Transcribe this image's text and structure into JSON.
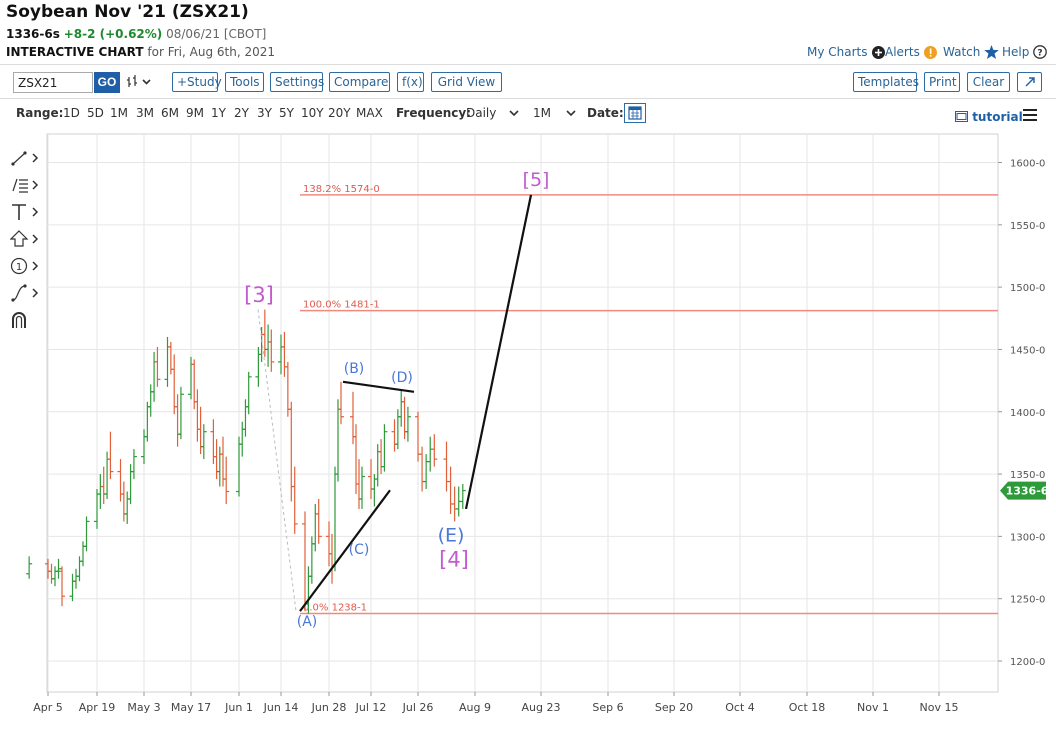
{
  "header": {
    "title": "Soybean Nov '21 (ZSX21)",
    "last": "1336-6s",
    "change": "+8-2 (+0.62%)",
    "date_exchange": "08/06/21 [CBOT]",
    "chart_label": "INTERACTIVE CHART",
    "chart_for": "for Fri, Aug 6th, 2021"
  },
  "top_links": {
    "my_charts": "My Charts",
    "alerts": "Alerts",
    "watch": "Watch",
    "help": "Help"
  },
  "toolbar": {
    "symbol": "ZSX21",
    "go": "GO",
    "study": "+Study",
    "tools": "Tools",
    "settings": "Settings",
    "compare": "Compare",
    "fx": "f(x)",
    "grid_view": "Grid View",
    "templates": "Templates",
    "print": "Print",
    "clear": "Clear"
  },
  "range_bar": {
    "range_label": "Range:",
    "ranges": [
      "1D",
      "5D",
      "1M",
      "3M",
      "6M",
      "9M",
      "1Y",
      "2Y",
      "3Y",
      "5Y",
      "10Y",
      "20Y",
      "MAX"
    ],
    "frequency_label": "Frequency:",
    "frequency": "Daily",
    "period": "1M",
    "date_label": "Date:",
    "tutorial": "tutorial"
  },
  "drawing_tools": [
    "line-tool-icon",
    "fibonacci-tool-icon",
    "text-tool-icon",
    "arrow-tool-icon",
    "elliott-count-tool-icon",
    "curve-tool-icon",
    "magnet-icon"
  ],
  "chart_data": {
    "type": "ohlc",
    "instrument": "Soybean Nov '21 (ZSX21)",
    "frequency": "Daily",
    "ylim": [
      1175,
      1625
    ],
    "y_ticks": [
      "1600-0",
      "1550-0",
      "1500-0",
      "1450-0",
      "1400-0",
      "1350-0",
      "1300-0",
      "1250-0",
      "1200-0"
    ],
    "y_tick_values": [
      1600,
      1550,
      1500,
      1450,
      1400,
      1350,
      1300,
      1250,
      1200
    ],
    "x_ticks": [
      "Apr 5",
      "Apr 19",
      "May 3",
      "May 17",
      "Jun 1",
      "Jun 14",
      "Jun 28",
      "Jul 12",
      "Jul 26",
      "Aug 9",
      "Aug 23",
      "Sep 6",
      "Sep 20",
      "Oct 4",
      "Oct 18",
      "Nov 1",
      "Nov 15"
    ],
    "last_price_label": "1336-6",
    "last_price": 1336.75,
    "colors": {
      "up": "#2e9a3a",
      "down": "#e0603a",
      "fib": "#f08a80",
      "wave": "#4a78d8",
      "major_wave": "#c35bd0",
      "last_tag": "#2e9a3a",
      "grid": "#e6e6e6"
    },
    "fib_levels": [
      {
        "label": "138.2% 1574-0",
        "value": 1574
      },
      {
        "label": "100.0% 1481-1",
        "value": 1481.125
      },
      {
        "label": "0.0% 1238-1",
        "value": 1238.125
      }
    ],
    "wave_labels_minor": [
      "(A)",
      "(B)",
      "(C)",
      "(D)",
      "(E)"
    ],
    "wave_labels_major": [
      "[3]",
      "[4]",
      "[5]"
    ],
    "ohlc": [
      {
        "d": "Apr 1",
        "o": 1270,
        "h": 1284,
        "l": 1266,
        "c": 1278
      },
      {
        "d": "Apr 5",
        "o": 1278,
        "h": 1282,
        "l": 1266,
        "c": 1272
      },
      {
        "d": "Apr 6",
        "o": 1272,
        "h": 1278,
        "l": 1262,
        "c": 1266
      },
      {
        "d": "Apr 7",
        "o": 1266,
        "h": 1276,
        "l": 1260,
        "c": 1272
      },
      {
        "d": "Apr 8",
        "o": 1272,
        "h": 1282,
        "l": 1266,
        "c": 1274
      },
      {
        "d": "Apr 9",
        "o": 1272,
        "h": 1276,
        "l": 1244,
        "c": 1252
      },
      {
        "d": "Apr 12",
        "o": 1252,
        "h": 1270,
        "l": 1248,
        "c": 1264
      },
      {
        "d": "Apr 13",
        "o": 1264,
        "h": 1274,
        "l": 1258,
        "c": 1268
      },
      {
        "d": "Apr 14",
        "o": 1268,
        "h": 1284,
        "l": 1264,
        "c": 1280
      },
      {
        "d": "Apr 15",
        "o": 1280,
        "h": 1296,
        "l": 1276,
        "c": 1292
      },
      {
        "d": "Apr 16",
        "o": 1292,
        "h": 1316,
        "l": 1288,
        "c": 1312
      },
      {
        "d": "Apr 19",
        "o": 1312,
        "h": 1338,
        "l": 1306,
        "c": 1334
      },
      {
        "d": "Apr 20",
        "o": 1334,
        "h": 1350,
        "l": 1322,
        "c": 1340
      },
      {
        "d": "Apr 21",
        "o": 1340,
        "h": 1356,
        "l": 1326,
        "c": 1334
      },
      {
        "d": "Apr 22",
        "o": 1334,
        "h": 1368,
        "l": 1330,
        "c": 1362
      },
      {
        "d": "Apr 23",
        "o": 1362,
        "h": 1384,
        "l": 1346,
        "c": 1352
      },
      {
        "d": "Apr 26",
        "o": 1352,
        "h": 1362,
        "l": 1328,
        "c": 1334
      },
      {
        "d": "Apr 27",
        "o": 1334,
        "h": 1344,
        "l": 1312,
        "c": 1318
      },
      {
        "d": "Apr 28",
        "o": 1318,
        "h": 1336,
        "l": 1310,
        "c": 1330
      },
      {
        "d": "Apr 29",
        "o": 1330,
        "h": 1358,
        "l": 1326,
        "c": 1352
      },
      {
        "d": "Apr 30",
        "o": 1352,
        "h": 1370,
        "l": 1346,
        "c": 1364
      },
      {
        "d": "May 3",
        "o": 1364,
        "h": 1386,
        "l": 1358,
        "c": 1380
      },
      {
        "d": "May 4",
        "o": 1380,
        "h": 1408,
        "l": 1376,
        "c": 1404
      },
      {
        "d": "May 5",
        "o": 1404,
        "h": 1422,
        "l": 1396,
        "c": 1416
      },
      {
        "d": "May 6",
        "o": 1416,
        "h": 1448,
        "l": 1408,
        "c": 1440
      },
      {
        "d": "May 7",
        "o": 1440,
        "h": 1452,
        "l": 1420,
        "c": 1426
      },
      {
        "d": "May 10",
        "o": 1426,
        "h": 1460,
        "l": 1420,
        "c": 1452
      },
      {
        "d": "May 11",
        "o": 1452,
        "h": 1456,
        "l": 1430,
        "c": 1434
      },
      {
        "d": "May 12",
        "o": 1434,
        "h": 1446,
        "l": 1398,
        "c": 1404
      },
      {
        "d": "May 13",
        "o": 1404,
        "h": 1414,
        "l": 1372,
        "c": 1382
      },
      {
        "d": "May 14",
        "o": 1382,
        "h": 1420,
        "l": 1378,
        "c": 1414
      },
      {
        "d": "May 17",
        "o": 1414,
        "h": 1444,
        "l": 1410,
        "c": 1438
      },
      {
        "d": "May 18",
        "o": 1438,
        "h": 1442,
        "l": 1402,
        "c": 1408
      },
      {
        "d": "May 19",
        "o": 1408,
        "h": 1418,
        "l": 1376,
        "c": 1386
      },
      {
        "d": "May 20",
        "o": 1386,
        "h": 1404,
        "l": 1366,
        "c": 1372
      },
      {
        "d": "May 21",
        "o": 1372,
        "h": 1390,
        "l": 1362,
        "c": 1384
      },
      {
        "d": "May 24",
        "o": 1384,
        "h": 1394,
        "l": 1358,
        "c": 1364
      },
      {
        "d": "May 25",
        "o": 1364,
        "h": 1378,
        "l": 1346,
        "c": 1352
      },
      {
        "d": "May 26",
        "o": 1352,
        "h": 1372,
        "l": 1340,
        "c": 1366
      },
      {
        "d": "May 27",
        "o": 1366,
        "h": 1380,
        "l": 1340,
        "c": 1346
      },
      {
        "d": "May 28",
        "o": 1346,
        "h": 1364,
        "l": 1326,
        "c": 1336
      },
      {
        "d": "Jun 1",
        "o": 1336,
        "h": 1380,
        "l": 1332,
        "c": 1374
      },
      {
        "d": "Jun 2",
        "o": 1374,
        "h": 1392,
        "l": 1364,
        "c": 1386
      },
      {
        "d": "Jun 3",
        "o": 1386,
        "h": 1410,
        "l": 1380,
        "c": 1404
      },
      {
        "d": "Jun 4",
        "o": 1404,
        "h": 1432,
        "l": 1398,
        "c": 1428
      },
      {
        "d": "Jun 7",
        "o": 1428,
        "h": 1452,
        "l": 1420,
        "c": 1446
      },
      {
        "d": "Jun 8",
        "o": 1446,
        "h": 1468,
        "l": 1440,
        "c": 1462
      },
      {
        "d": "Jun 9",
        "o": 1462,
        "h": 1482,
        "l": 1444,
        "c": 1450
      },
      {
        "d": "Jun 10",
        "o": 1450,
        "h": 1470,
        "l": 1436,
        "c": 1456
      },
      {
        "d": "Jun 11",
        "o": 1456,
        "h": 1466,
        "l": 1432,
        "c": 1440
      },
      {
        "d": "Jun 14",
        "o": 1440,
        "h": 1462,
        "l": 1430,
        "c": 1452
      },
      {
        "d": "Jun 15",
        "o": 1452,
        "h": 1464,
        "l": 1428,
        "c": 1436
      },
      {
        "d": "Jun 16",
        "o": 1436,
        "h": 1440,
        "l": 1396,
        "c": 1402
      },
      {
        "d": "Jun 17",
        "o": 1402,
        "h": 1408,
        "l": 1328,
        "c": 1340
      },
      {
        "d": "Jun 18",
        "o": 1340,
        "h": 1356,
        "l": 1302,
        "c": 1310
      },
      {
        "d": "Jun 21",
        "o": 1310,
        "h": 1320,
        "l": 1240,
        "c": 1246
      },
      {
        "d": "Jun 22",
        "o": 1246,
        "h": 1276,
        "l": 1238,
        "c": 1268
      },
      {
        "d": "Jun 23",
        "o": 1268,
        "h": 1300,
        "l": 1262,
        "c": 1294
      },
      {
        "d": "Jun 24",
        "o": 1294,
        "h": 1326,
        "l": 1288,
        "c": 1318
      },
      {
        "d": "Jun 25",
        "o": 1318,
        "h": 1330,
        "l": 1294,
        "c": 1300
      },
      {
        "d": "Jun 28",
        "o": 1300,
        "h": 1312,
        "l": 1276,
        "c": 1286
      },
      {
        "d": "Jun 29",
        "o": 1286,
        "h": 1302,
        "l": 1262,
        "c": 1276
      },
      {
        "d": "Jun 30",
        "o": 1276,
        "h": 1356,
        "l": 1272,
        "c": 1350
      },
      {
        "d": "Jul 1",
        "o": 1350,
        "h": 1410,
        "l": 1344,
        "c": 1402
      },
      {
        "d": "Jul 2",
        "o": 1402,
        "h": 1424,
        "l": 1390,
        "c": 1396
      },
      {
        "d": "Jul 6",
        "o": 1396,
        "h": 1416,
        "l": 1374,
        "c": 1380
      },
      {
        "d": "Jul 7",
        "o": 1380,
        "h": 1390,
        "l": 1334,
        "c": 1342
      },
      {
        "d": "Jul 8",
        "o": 1342,
        "h": 1362,
        "l": 1322,
        "c": 1330
      },
      {
        "d": "Jul 9",
        "o": 1330,
        "h": 1356,
        "l": 1322,
        "c": 1348
      },
      {
        "d": "Jul 12",
        "o": 1348,
        "h": 1362,
        "l": 1330,
        "c": 1338
      },
      {
        "d": "Jul 13",
        "o": 1338,
        "h": 1350,
        "l": 1324,
        "c": 1346
      },
      {
        "d": "Jul 14",
        "o": 1346,
        "h": 1374,
        "l": 1340,
        "c": 1368
      },
      {
        "d": "Jul 15",
        "o": 1368,
        "h": 1378,
        "l": 1350,
        "c": 1356
      },
      {
        "d": "Jul 16",
        "o": 1356,
        "h": 1390,
        "l": 1352,
        "c": 1384
      },
      {
        "d": "Jul 19",
        "o": 1384,
        "h": 1394,
        "l": 1368,
        "c": 1374
      },
      {
        "d": "Jul 20",
        "o": 1374,
        "h": 1402,
        "l": 1370,
        "c": 1396
      },
      {
        "d": "Jul 21",
        "o": 1396,
        "h": 1418,
        "l": 1388,
        "c": 1408
      },
      {
        "d": "Jul 22",
        "o": 1408,
        "h": 1412,
        "l": 1378,
        "c": 1384
      },
      {
        "d": "Jul 23",
        "o": 1384,
        "h": 1404,
        "l": 1376,
        "c": 1396
      },
      {
        "d": "Jul 26",
        "o": 1396,
        "h": 1400,
        "l": 1360,
        "c": 1366
      },
      {
        "d": "Jul 27",
        "o": 1366,
        "h": 1372,
        "l": 1336,
        "c": 1344
      },
      {
        "d": "Jul 28",
        "o": 1344,
        "h": 1366,
        "l": 1338,
        "c": 1360
      },
      {
        "d": "Jul 29",
        "o": 1360,
        "h": 1380,
        "l": 1352,
        "c": 1370
      },
      {
        "d": "Jul 30",
        "o": 1370,
        "h": 1382,
        "l": 1356,
        "c": 1362
      },
      {
        "d": "Aug 2",
        "o": 1362,
        "h": 1376,
        "l": 1336,
        "c": 1344
      },
      {
        "d": "Aug 3",
        "o": 1344,
        "h": 1356,
        "l": 1318,
        "c": 1326
      },
      {
        "d": "Aug 4",
        "o": 1326,
        "h": 1340,
        "l": 1312,
        "c": 1322
      },
      {
        "d": "Aug 5",
        "o": 1322,
        "h": 1340,
        "l": 1316,
        "c": 1328
      },
      {
        "d": "Aug 6",
        "o": 1328,
        "h": 1342,
        "l": 1322,
        "c": 1336.75
      }
    ]
  }
}
